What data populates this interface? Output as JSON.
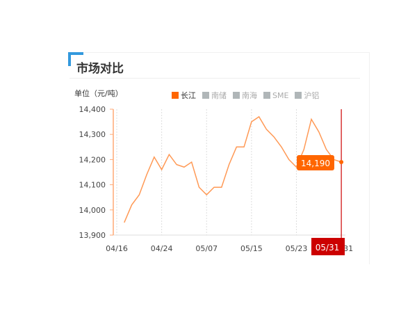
{
  "title": "市场对比",
  "unit_label": "单位（元/吨）",
  "legend": [
    {
      "label": "长江",
      "active": true
    },
    {
      "label": "南储",
      "active": false
    },
    {
      "label": "南海",
      "active": false
    },
    {
      "label": "SME",
      "active": false
    },
    {
      "label": "沪铝",
      "active": false
    }
  ],
  "colors": {
    "series": "#ff9955",
    "accent": "#ff6600",
    "cursor": "#cc0000",
    "title_corner": "#3399dd"
  },
  "chart_data": {
    "type": "line",
    "ylabel": "单位（元/吨）",
    "ylim": [
      13900,
      14400
    ],
    "yticks": [
      "14,400",
      "14,300",
      "14,200",
      "14,100",
      "14,000",
      "13,900"
    ],
    "xticks": [
      "04/16",
      "04/24",
      "05/07",
      "05/15",
      "05/23",
      "31"
    ],
    "grid": "vertical dashed",
    "legend_position": "top",
    "series": [
      {
        "name": "长江",
        "values": [
          13950,
          14020,
          14060,
          14140,
          14210,
          14160,
          14220,
          14180,
          14170,
          14190,
          14090,
          14060,
          14090,
          14090,
          14180,
          14250,
          14250,
          14350,
          14370,
          14320,
          14290,
          14250,
          14200,
          14170,
          14240,
          14360,
          14310,
          14240,
          14200,
          14190
        ]
      }
    ],
    "tooltip": {
      "value": "14,190",
      "date": "05/31"
    }
  }
}
